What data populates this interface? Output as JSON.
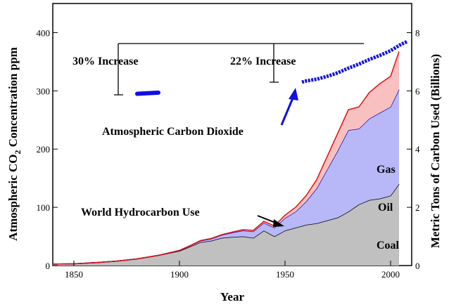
{
  "chart_data": {
    "type": "area",
    "xlabel": "Year",
    "ylabel_left": "Atmospheric CO₂ Concentration ppm",
    "ylabel_left_main": "Atmospheric CO",
    "ylabel_left_sub": "2",
    "ylabel_left_tail": " Concentration ppm",
    "ylabel_right": "Metric Tons of Carbon Used (Billions)",
    "xlim": [
      1840,
      2010
    ],
    "ylim_left": [
      0,
      450
    ],
    "ylim_right": [
      0,
      9
    ],
    "x_ticks": [
      1850,
      1900,
      1950,
      2000
    ],
    "y_ticks_left": [
      0,
      100,
      200,
      300,
      400
    ],
    "y_ticks_right": [
      0,
      2,
      4,
      6,
      8
    ],
    "stack_years": [
      1840,
      1850,
      1860,
      1870,
      1880,
      1890,
      1900,
      1905,
      1910,
      1915,
      1920,
      1925,
      1930,
      1935,
      1940,
      1945,
      1950,
      1955,
      1960,
      1965,
      1970,
      1975,
      1980,
      1985,
      1990,
      1995,
      2000,
      2004
    ],
    "series": [
      {
        "name": "Coal",
        "color": "#c0c0c0",
        "line": "#000000",
        "values": [
          0.05,
          0.06,
          0.1,
          0.15,
          0.23,
          0.35,
          0.5,
          0.65,
          0.8,
          0.85,
          0.95,
          0.98,
          1.0,
          0.95,
          1.2,
          1.0,
          1.2,
          1.3,
          1.4,
          1.45,
          1.55,
          1.65,
          1.85,
          2.1,
          2.25,
          2.3,
          2.4,
          2.8
        ]
      },
      {
        "name": "Oil",
        "color": "#b8b8f8",
        "line": "#1010c0",
        "values": [
          0,
          0,
          0,
          0,
          0,
          0,
          0.02,
          0.03,
          0.05,
          0.07,
          0.1,
          0.15,
          0.2,
          0.22,
          0.27,
          0.3,
          0.43,
          0.55,
          0.8,
          1.2,
          1.75,
          2.3,
          2.8,
          2.6,
          2.8,
          2.95,
          3.05,
          3.25
        ]
      },
      {
        "name": "Gas",
        "color": "#f8c0c0",
        "line": "#e01010",
        "values": [
          0,
          0,
          0,
          0,
          0,
          0,
          0,
          0,
          0.01,
          0.01,
          0.01,
          0.02,
          0.03,
          0.04,
          0.05,
          0.06,
          0.1,
          0.15,
          0.2,
          0.3,
          0.45,
          0.6,
          0.7,
          0.75,
          0.9,
          1.0,
          1.05,
          1.3
        ]
      }
    ],
    "co2_series": {
      "name": "Atmospheric Carbon Dioxide",
      "color": "#1010e0",
      "early": {
        "x": [
          1880,
          1890
        ],
        "y": [
          295,
          297
        ]
      },
      "modern": {
        "x": [
          1958,
          1960,
          1965,
          1970,
          1975,
          1980,
          1985,
          1990,
          1995,
          2000,
          2005,
          2008
        ],
        "y": [
          315,
          317,
          320,
          325,
          331,
          339,
          346,
          354,
          361,
          369,
          380,
          385
        ]
      }
    },
    "annotations": {
      "co2_label": "Atmospheric Carbon Dioxide",
      "hydro_label": "World Hydrocarbon Use",
      "increase_1": "30% Increase",
      "increase_2": "22% Increase",
      "gas_label": "Gas",
      "oil_label": "Oil",
      "coal_label": "Coal"
    }
  }
}
